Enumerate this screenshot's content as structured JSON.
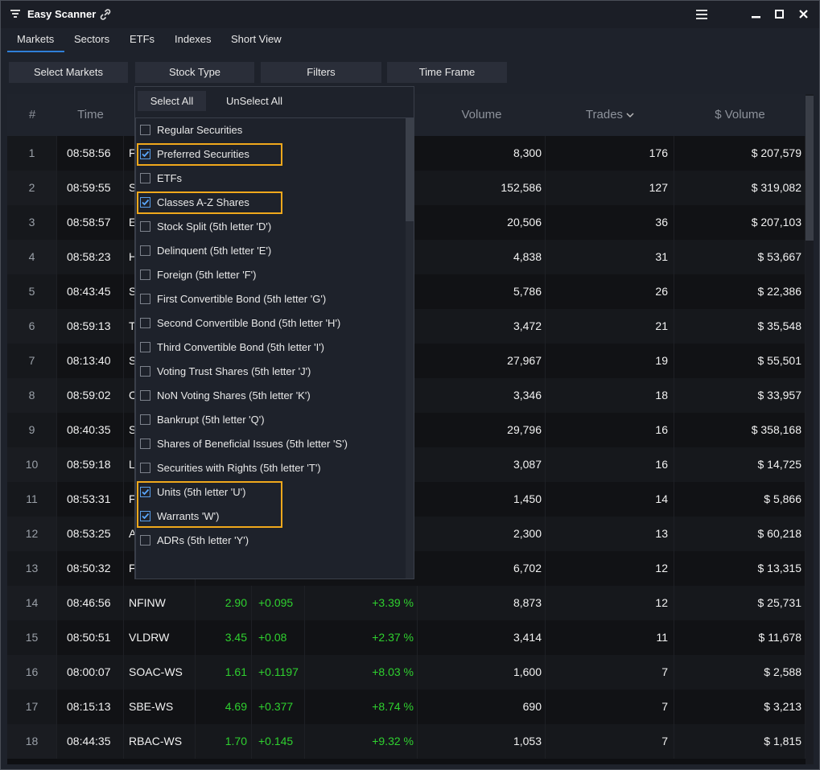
{
  "window": {
    "title": "Easy Scanner"
  },
  "tabs": [
    "Markets",
    "Sectors",
    "ETFs",
    "Indexes",
    "Short View"
  ],
  "active_tab": 0,
  "toolbar": [
    "Select Markets",
    "Stock Type",
    "Filters",
    "Time Frame"
  ],
  "table": {
    "header": {
      "n": "#",
      "time": "Time",
      "volume": "Volume",
      "trades": "Trades",
      "dollar_volume": "$ Volume"
    },
    "rows": [
      {
        "n": "1",
        "time": "08:58:56",
        "symbol": "F",
        "volume": "8,300",
        "trades": "176",
        "dollar_volume": "$ 207,579"
      },
      {
        "n": "2",
        "time": "08:59:55",
        "symbol": "S",
        "volume": "152,586",
        "trades": "127",
        "dollar_volume": "$ 319,082"
      },
      {
        "n": "3",
        "time": "08:58:57",
        "symbol": "E",
        "volume": "20,506",
        "trades": "36",
        "dollar_volume": "$ 207,103"
      },
      {
        "n": "4",
        "time": "08:58:23",
        "symbol": "H",
        "volume": "4,838",
        "trades": "31",
        "dollar_volume": "$ 53,667"
      },
      {
        "n": "5",
        "time": "08:43:45",
        "symbol": "S",
        "volume": "5,786",
        "trades": "26",
        "dollar_volume": "$ 22,386"
      },
      {
        "n": "6",
        "time": "08:59:13",
        "symbol": "T",
        "volume": "3,472",
        "trades": "21",
        "dollar_volume": "$ 35,548"
      },
      {
        "n": "7",
        "time": "08:13:40",
        "symbol": "S",
        "volume": "27,967",
        "trades": "19",
        "dollar_volume": "$ 55,501"
      },
      {
        "n": "8",
        "time": "08:59:02",
        "symbol": "C",
        "volume": "3,346",
        "trades": "18",
        "dollar_volume": "$ 33,957"
      },
      {
        "n": "9",
        "time": "08:40:35",
        "symbol": "S",
        "volume": "29,796",
        "trades": "16",
        "dollar_volume": "$ 358,168"
      },
      {
        "n": "10",
        "time": "08:59:18",
        "symbol": "L",
        "volume": "3,087",
        "trades": "16",
        "dollar_volume": "$ 14,725"
      },
      {
        "n": "11",
        "time": "08:53:31",
        "symbol": "F",
        "volume": "1,450",
        "trades": "14",
        "dollar_volume": "$ 5,866"
      },
      {
        "n": "12",
        "time": "08:53:25",
        "symbol": "A",
        "volume": "2,300",
        "trades": "13",
        "dollar_volume": "$ 60,218"
      },
      {
        "n": "13",
        "time": "08:50:32",
        "symbol": "F",
        "volume": "6,702",
        "trades": "12",
        "dollar_volume": "$ 13,315"
      },
      {
        "n": "14",
        "time": "08:46:56",
        "symbol": "NFINW",
        "price": "2.90",
        "change": "+0.095",
        "pct": "+3.39 %",
        "volume": "8,873",
        "trades": "12",
        "dollar_volume": "$ 25,731"
      },
      {
        "n": "15",
        "time": "08:50:51",
        "symbol": "VLDRW",
        "price": "3.45",
        "change": "+0.08",
        "pct": "+2.37 %",
        "volume": "3,414",
        "trades": "11",
        "dollar_volume": "$ 11,678"
      },
      {
        "n": "16",
        "time": "08:00:07",
        "symbol": "SOAC-WS",
        "price": "1.61",
        "change": "+0.1197",
        "pct": "+8.03 %",
        "volume": "1,600",
        "trades": "7",
        "dollar_volume": "$ 2,588"
      },
      {
        "n": "17",
        "time": "08:15:13",
        "symbol": "SBE-WS",
        "price": "4.69",
        "change": "+0.377",
        "pct": "+8.74 %",
        "volume": "690",
        "trades": "7",
        "dollar_volume": "$ 3,213"
      },
      {
        "n": "18",
        "time": "08:44:35",
        "symbol": "RBAC-WS",
        "price": "1.70",
        "change": "+0.145",
        "pct": "+9.32 %",
        "volume": "1,053",
        "trades": "7",
        "dollar_volume": "$ 1,815"
      }
    ]
  },
  "dropdown": {
    "select_all": "Select All",
    "unselect_all": "UnSelect All",
    "options": [
      {
        "label": "Regular Securities",
        "checked": false
      },
      {
        "label": "Preferred Securities",
        "checked": true
      },
      {
        "label": "ETFs",
        "checked": false
      },
      {
        "label": "Classes A-Z Shares",
        "checked": true
      },
      {
        "label": "Stock Split (5th letter 'D')",
        "checked": false
      },
      {
        "label": "Delinquent (5th letter 'E')",
        "checked": false
      },
      {
        "label": "Foreign (5th letter 'F')",
        "checked": false
      },
      {
        "label": "First Convertible Bond (5th letter 'G')",
        "checked": false
      },
      {
        "label": "Second Convertible Bond (5th letter 'H')",
        "checked": false
      },
      {
        "label": "Third Convertible Bond (5th letter 'I')",
        "checked": false
      },
      {
        "label": "Voting Trust Shares (5th letter 'J')",
        "checked": false
      },
      {
        "label": "NoN Voting Shares (5th letter 'K')",
        "checked": false
      },
      {
        "label": "Bankrupt (5th letter 'Q')",
        "checked": false
      },
      {
        "label": "Shares of Beneficial Issues (5th letter 'S')",
        "checked": false
      },
      {
        "label": "Securities with Rights (5th letter 'T')",
        "checked": false
      },
      {
        "label": "Units (5th letter 'U')",
        "checked": true
      },
      {
        "label": "Warrants 'W')",
        "checked": true
      },
      {
        "label": "ADRs (5th letter 'Y')",
        "checked": false
      }
    ]
  }
}
